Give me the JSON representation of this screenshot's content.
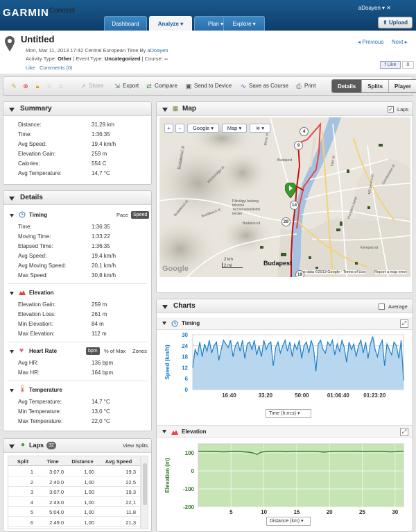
{
  "brand": {
    "name": "GARMIN",
    "product": "Connect"
  },
  "nav": {
    "tabs": [
      "Dashboard",
      "Analyze",
      "Plan",
      "Explore"
    ],
    "active": "Analyze",
    "user": "aDoayen",
    "upload": "Upload"
  },
  "activity": {
    "title": "Untitled",
    "date_line": "Mon, Mar 11, 2013 17:42 Central European Time",
    "by_label": "By",
    "author": "aDoayen",
    "activity_type_label": "Activity Type:",
    "activity_type": "Other",
    "event_type_label": "| Event Type:",
    "event_type": "Uncategorized",
    "course_label": "| Course:",
    "course": "--",
    "like": "Like",
    "comments": "Comments (0)",
    "previous": "Previous",
    "next": "Next",
    "fb_like": "Like",
    "fb_count": "0"
  },
  "toolbar": {
    "share": "Share",
    "export": "Export",
    "compare": "Compare",
    "send": "Send to Device",
    "save_course": "Save as Course",
    "print": "Print",
    "views": [
      "Details",
      "Splits",
      "Player"
    ],
    "active_view": "Details"
  },
  "summary": {
    "title": "Summary",
    "rows": [
      {
        "label": "Distance:",
        "value": "31,29 km"
      },
      {
        "label": "Time:",
        "value": "1:36:35"
      },
      {
        "label": "Avg Speed:",
        "value": "19,4 km/h"
      },
      {
        "label": "Elevation Gain:",
        "value": "259 m"
      },
      {
        "label": "Calories:",
        "value": "554 C"
      },
      {
        "label": "Avg Temperature:",
        "value": "14,7 °C"
      }
    ]
  },
  "details": {
    "title": "Details",
    "timing": {
      "title": "Timing",
      "pace": "Pace",
      "speed": "Speed",
      "rows": [
        {
          "label": "Time:",
          "value": "1:36:35"
        },
        {
          "label": "Moving Time:",
          "value": "1:33:22"
        },
        {
          "label": "Elapsed Time:",
          "value": "1:36:35"
        },
        {
          "label": "Avg Speed:",
          "value": "19,4 km/h"
        },
        {
          "label": "Avg Moving Speed:",
          "value": "20,1 km/h"
        },
        {
          "label": "Max Speed:",
          "value": "30,8 km/h"
        }
      ]
    },
    "elevation": {
      "title": "Elevation",
      "rows": [
        {
          "label": "Elevation Gain:",
          "value": "259 m"
        },
        {
          "label": "Elevation Loss:",
          "value": "261 m"
        },
        {
          "label": "Min Elevation:",
          "value": "84 m"
        },
        {
          "label": "Max Elevation:",
          "value": "112 m"
        }
      ]
    },
    "heart_rate": {
      "title": "Heart Rate",
      "bpm": "bpm",
      "pct_max": "% of Max",
      "zones": "Zones",
      "rows": [
        {
          "label": "Avg HR:",
          "value": "136 bpm"
        },
        {
          "label": "Max HR:",
          "value": "164 bpm"
        }
      ]
    },
    "temperature": {
      "title": "Temperature",
      "rows": [
        {
          "label": "Avg Temperature:",
          "value": "14,7 °C"
        },
        {
          "label": "Min Temperature:",
          "value": "13,0 °C"
        },
        {
          "label": "Max Temperature:",
          "value": "22,0 °C"
        }
      ]
    }
  },
  "laps": {
    "title": "Laps",
    "count": "32",
    "view_splits": "View Splits",
    "headers": [
      "Split",
      "Time",
      "Distance",
      "Avg Speed"
    ],
    "rows": [
      [
        "1",
        "3:07.0",
        "1,00",
        "19,3"
      ],
      [
        "2",
        "2:40.0",
        "1,00",
        "22,5"
      ],
      [
        "3",
        "3:07.0",
        "1,00",
        "19,3"
      ],
      [
        "4",
        "2:43.0",
        "1,00",
        "22,1"
      ],
      [
        "5",
        "5:04.0",
        "1,00",
        "11,8"
      ],
      [
        "6",
        "2:49.0",
        "1,00",
        "21,3"
      ]
    ]
  },
  "map": {
    "title": "Map",
    "laps_label": "Laps",
    "laps_checked": true,
    "type_google": "Google",
    "type_map": "Map",
    "labels": [
      "Budapest",
      "Budapest",
      "Pálvölgyi barlang felszíne Természetvédelmi terület",
      "Hűvösvölgyi út",
      "Budakeszi út",
      "Budakeszi út",
      "Budaörsi út",
      "Kerepesi út",
      "Hungária körút",
      "M3 bevezető",
      "Szentendrei út",
      "Bécsi út",
      "Váci út"
    ],
    "markers": [
      "4",
      "9",
      "14",
      "29",
      "19"
    ],
    "scale_km": "2 km",
    "scale_mi": "2 mi",
    "google": "Google",
    "attribution": "Map data ©2013 Google - Terms of Use",
    "report": "Report a map error"
  },
  "charts": {
    "title": "Charts",
    "average_label": "Average",
    "timing_title": "Timing",
    "elevation_title": "Elevation",
    "timing_x_select": "Time (h:m:s)",
    "elevation_x_select": "Distance (km)",
    "colors": {
      "speed": "#1a7fc8",
      "speed_fill": "#b9d6ef",
      "elev": "#2f7a22",
      "elev_fill": "#c7e4b5"
    }
  },
  "chart_data": [
    {
      "type": "area",
      "ylabel": "Speed (km/h)",
      "ylim": [
        0,
        30
      ],
      "yticks": [
        0,
        6,
        12,
        18,
        24,
        30
      ],
      "xtick_labels": [
        "16:40",
        "33:20",
        "50:00",
        "01:06:40",
        "01:23:20"
      ],
      "x_seconds_range": [
        0,
        5795
      ],
      "grid": true,
      "series": [
        {
          "values": [
            12,
            22,
            19,
            26,
            18,
            25,
            21,
            27,
            20,
            24,
            26,
            16,
            22,
            27,
            25,
            23,
            27,
            18,
            24,
            26,
            21,
            27,
            17,
            25,
            26,
            22,
            27,
            19,
            24,
            18,
            27,
            22,
            25,
            26,
            13,
            23,
            26,
            20,
            24,
            27,
            21,
            26,
            18,
            25,
            22,
            27,
            17,
            24,
            26,
            20,
            27,
            23,
            10,
            25,
            27,
            22,
            20,
            26,
            24,
            27,
            19,
            25,
            21,
            27,
            23,
            15,
            26,
            22,
            25,
            18,
            24,
            27,
            20,
            26,
            17,
            25,
            29,
            22,
            18,
            24,
            27,
            13,
            25,
            22,
            19,
            26,
            24,
            17,
            27,
            5
          ]
        }
      ]
    },
    {
      "type": "area",
      "ylabel": "Elevation (m)",
      "ylim": [
        -200,
        150
      ],
      "yticks": [
        -200,
        -100,
        0,
        100
      ],
      "xticks": [
        5,
        10,
        15,
        20,
        25,
        30
      ],
      "xlim": [
        0,
        31.29
      ],
      "grid": true,
      "series": [
        {
          "values": [
            108,
            108,
            107,
            108,
            107,
            106,
            105,
            106,
            107,
            108,
            107,
            105,
            104,
            100,
            92,
            104,
            106,
            107,
            108,
            108,
            107,
            106,
            107,
            108,
            108,
            107,
            108,
            108,
            107,
            106,
            104,
            106,
            107,
            108,
            108,
            107,
            108,
            109,
            108,
            107,
            106,
            107,
            108,
            108,
            107,
            106,
            105,
            106,
            107,
            108
          ]
        }
      ]
    }
  ]
}
